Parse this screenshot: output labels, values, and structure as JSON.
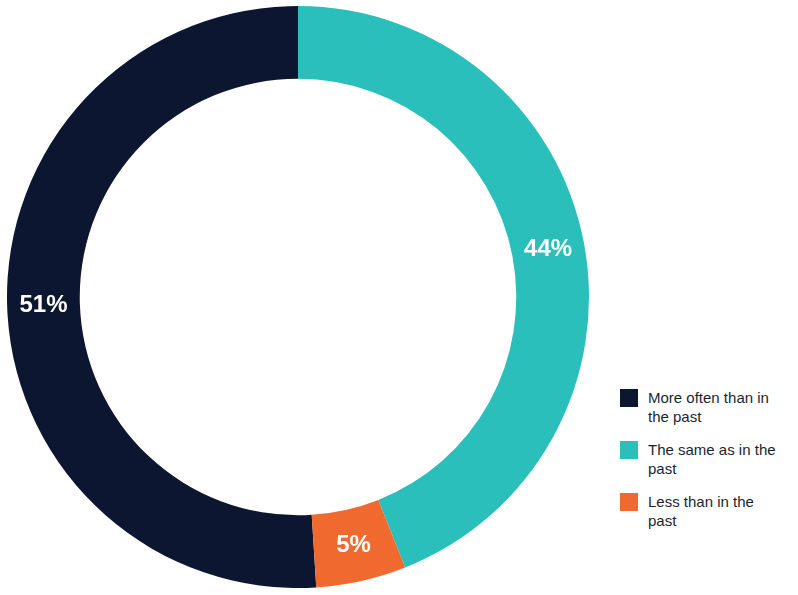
{
  "chart_data": {
    "type": "doughnut",
    "categories": [
      "More often than in the past",
      "The same as in the past",
      "Less than in the past"
    ],
    "values": [
      51,
      44,
      5
    ],
    "value_labels": [
      "51%",
      "44%",
      "5%"
    ],
    "colors": [
      "#0d1631",
      "#2bbfbb",
      "#f06a2f"
    ],
    "data_labels": true,
    "legend": "right"
  }
}
